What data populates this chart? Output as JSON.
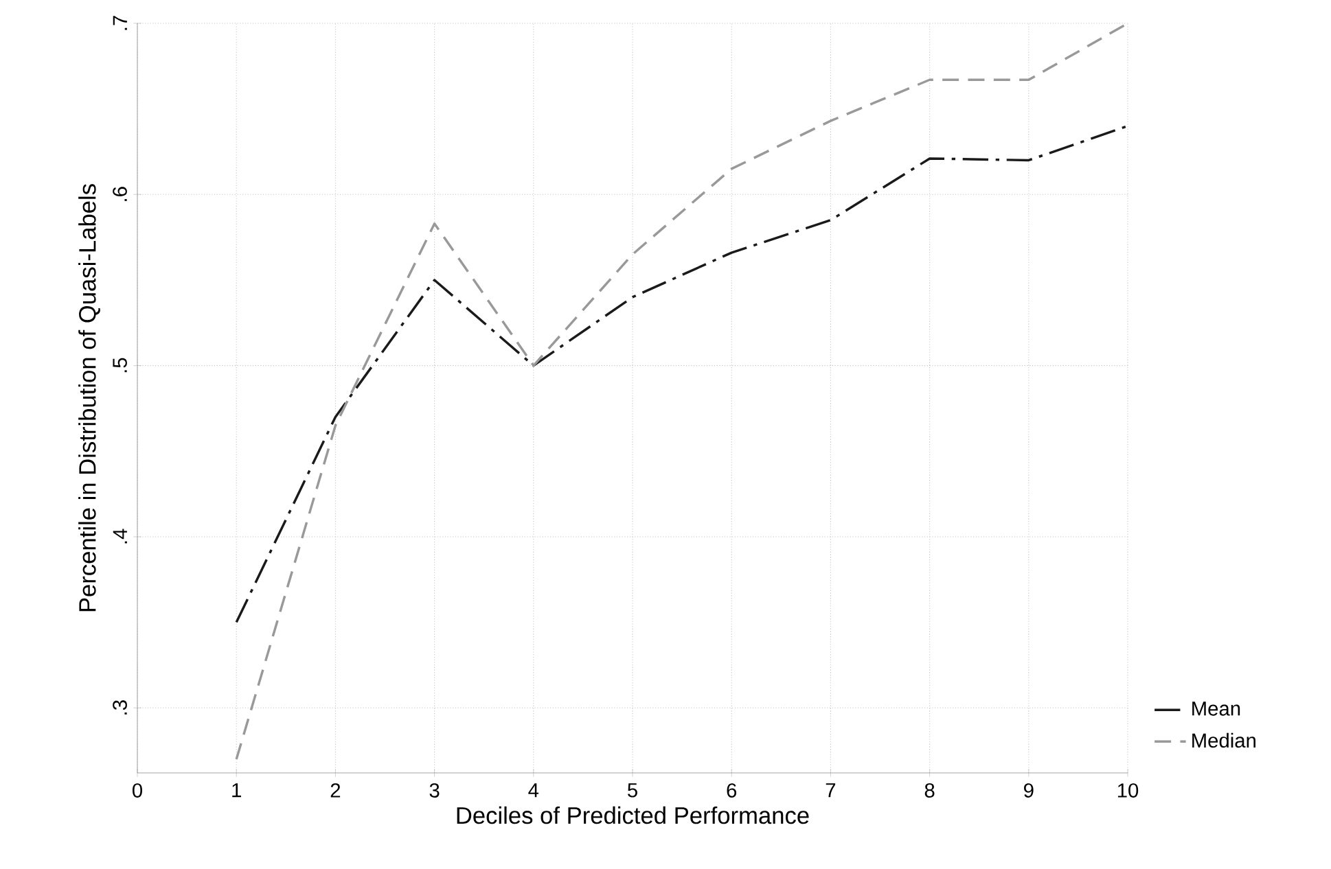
{
  "chart_data": {
    "type": "line",
    "xlabel": "Deciles of Predicted Performance",
    "ylabel": "Percentile in Distribution of Quasi-Labels",
    "x": [
      1,
      2,
      3,
      4,
      5,
      6,
      7,
      8,
      9,
      10
    ],
    "series": [
      {
        "name": "Mean",
        "color": "#1a1a1a",
        "line_style": "dashdot",
        "values": [
          0.35,
          0.47,
          0.55,
          0.5,
          0.54,
          0.566,
          0.585,
          0.621,
          0.62,
          0.64
        ]
      },
      {
        "name": "Median",
        "color": "#999999",
        "line_style": "dashed",
        "values": [
          0.27,
          0.465,
          0.583,
          0.5,
          0.565,
          0.615,
          0.643,
          0.667,
          0.667,
          0.7
        ]
      }
    ],
    "xlim": [
      0,
      10
    ],
    "xticks": [
      0,
      1,
      2,
      3,
      4,
      5,
      6,
      7,
      8,
      9,
      10
    ],
    "ylim": [
      0.262,
      0.7
    ],
    "yticks": [
      {
        "value": 0.3,
        "label": ".3"
      },
      {
        "value": 0.4,
        "label": ".4"
      },
      {
        "value": 0.5,
        "label": ".5"
      },
      {
        "value": 0.6,
        "label": ".6"
      },
      {
        "value": 0.7,
        "label": ".7"
      }
    ],
    "grid": true,
    "legend": "right",
    "marker": "none"
  }
}
